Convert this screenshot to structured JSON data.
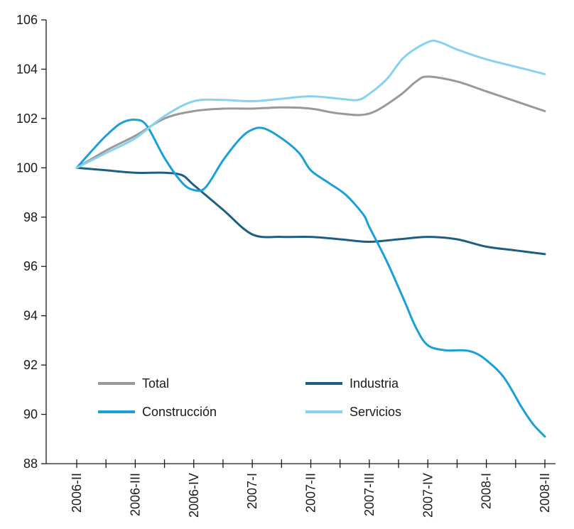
{
  "chart_data": {
    "type": "line",
    "title": "",
    "xlabel": "",
    "ylabel": "",
    "ylim": [
      88,
      106
    ],
    "yticks": [
      88,
      90,
      92,
      94,
      96,
      98,
      100,
      102,
      104,
      106
    ],
    "ytick_labels": [
      "88",
      "90",
      "92",
      "94",
      "96",
      "98",
      "100",
      "102",
      "104",
      "106"
    ],
    "categories": [
      "2006-II",
      "2006-III",
      "2006-IV",
      "2007-I",
      "2007-II",
      "2007-III",
      "2007-IV",
      "2008-I",
      "2008-II"
    ],
    "grid": false,
    "legend_position": "bottom-inside",
    "series": [
      {
        "name": "Total",
        "color": "#999999",
        "values": [
          100.0,
          101.3,
          102.3,
          102.4,
          102.4,
          102.2,
          103.7,
          103.2,
          102.3
        ],
        "points": [
          [
            0,
            100.0
          ],
          [
            0.5,
            100.7
          ],
          [
            1,
            101.3
          ],
          [
            1.5,
            102.0
          ],
          [
            2,
            102.3
          ],
          [
            2.5,
            102.4
          ],
          [
            3,
            102.4
          ],
          [
            3.5,
            102.45
          ],
          [
            4,
            102.4
          ],
          [
            4.5,
            102.2
          ],
          [
            5,
            102.2
          ],
          [
            5.5,
            102.9
          ],
          [
            5.8,
            103.5
          ],
          [
            6,
            103.7
          ],
          [
            6.5,
            103.5
          ],
          [
            7,
            103.1
          ],
          [
            7.5,
            102.7
          ],
          [
            8,
            102.3
          ]
        ]
      },
      {
        "name": "Industria",
        "color": "#1e5f80",
        "values": [
          100.0,
          99.8,
          99.2,
          97.2,
          97.2,
          97.0,
          97.2,
          96.8,
          96.5
        ],
        "points": [
          [
            0,
            100.0
          ],
          [
            0.5,
            99.9
          ],
          [
            1,
            99.8
          ],
          [
            1.5,
            99.8
          ],
          [
            1.8,
            99.7
          ],
          [
            2,
            99.3
          ],
          [
            2.5,
            98.3
          ],
          [
            3,
            97.3
          ],
          [
            3.5,
            97.2
          ],
          [
            4,
            97.2
          ],
          [
            4.5,
            97.1
          ],
          [
            5,
            97.0
          ],
          [
            5.5,
            97.1
          ],
          [
            6,
            97.2
          ],
          [
            6.5,
            97.1
          ],
          [
            7,
            96.8
          ],
          [
            7.5,
            96.65
          ],
          [
            8,
            96.5
          ]
        ]
      },
      {
        "name": "Construcción",
        "color": "#1a9fd9",
        "values": [
          100.0,
          101.9,
          99.2,
          101.6,
          99.4,
          97.6,
          92.8,
          92.4,
          89.1
        ],
        "points": [
          [
            0,
            100.0
          ],
          [
            0.3,
            100.8
          ],
          [
            0.5,
            101.3
          ],
          [
            0.75,
            101.8
          ],
          [
            1,
            101.95
          ],
          [
            1.2,
            101.7
          ],
          [
            1.5,
            100.4
          ],
          [
            1.8,
            99.4
          ],
          [
            2,
            99.1
          ],
          [
            2.2,
            99.2
          ],
          [
            2.5,
            100.3
          ],
          [
            2.8,
            101.2
          ],
          [
            3,
            101.55
          ],
          [
            3.2,
            101.6
          ],
          [
            3.5,
            101.2
          ],
          [
            3.8,
            100.6
          ],
          [
            4,
            99.9
          ],
          [
            4.3,
            99.4
          ],
          [
            4.6,
            98.9
          ],
          [
            4.9,
            98.1
          ],
          [
            5,
            97.6
          ],
          [
            5.3,
            96.2
          ],
          [
            5.6,
            94.6
          ],
          [
            5.8,
            93.5
          ],
          [
            6,
            92.8
          ],
          [
            6.3,
            92.6
          ],
          [
            6.6,
            92.6
          ],
          [
            6.8,
            92.5
          ],
          [
            7,
            92.2
          ],
          [
            7.3,
            91.5
          ],
          [
            7.6,
            90.3
          ],
          [
            7.8,
            89.6
          ],
          [
            8,
            89.1
          ]
        ]
      },
      {
        "name": "Servicios",
        "color": "#88d1ef",
        "values": [
          100.0,
          101.3,
          102.7,
          102.7,
          102.9,
          102.8,
          105.1,
          104.5,
          103.8
        ],
        "points": [
          [
            0,
            100.0
          ],
          [
            0.5,
            100.6
          ],
          [
            1,
            101.2
          ],
          [
            1.5,
            102.1
          ],
          [
            2,
            102.7
          ],
          [
            2.5,
            102.75
          ],
          [
            3,
            102.7
          ],
          [
            3.5,
            102.8
          ],
          [
            4,
            102.9
          ],
          [
            4.5,
            102.8
          ],
          [
            4.8,
            102.75
          ],
          [
            5,
            103.0
          ],
          [
            5.3,
            103.6
          ],
          [
            5.6,
            104.5
          ],
          [
            6,
            105.1
          ],
          [
            6.2,
            105.1
          ],
          [
            6.5,
            104.8
          ],
          [
            7,
            104.4
          ],
          [
            7.5,
            104.1
          ],
          [
            8,
            103.8
          ]
        ]
      }
    ]
  }
}
